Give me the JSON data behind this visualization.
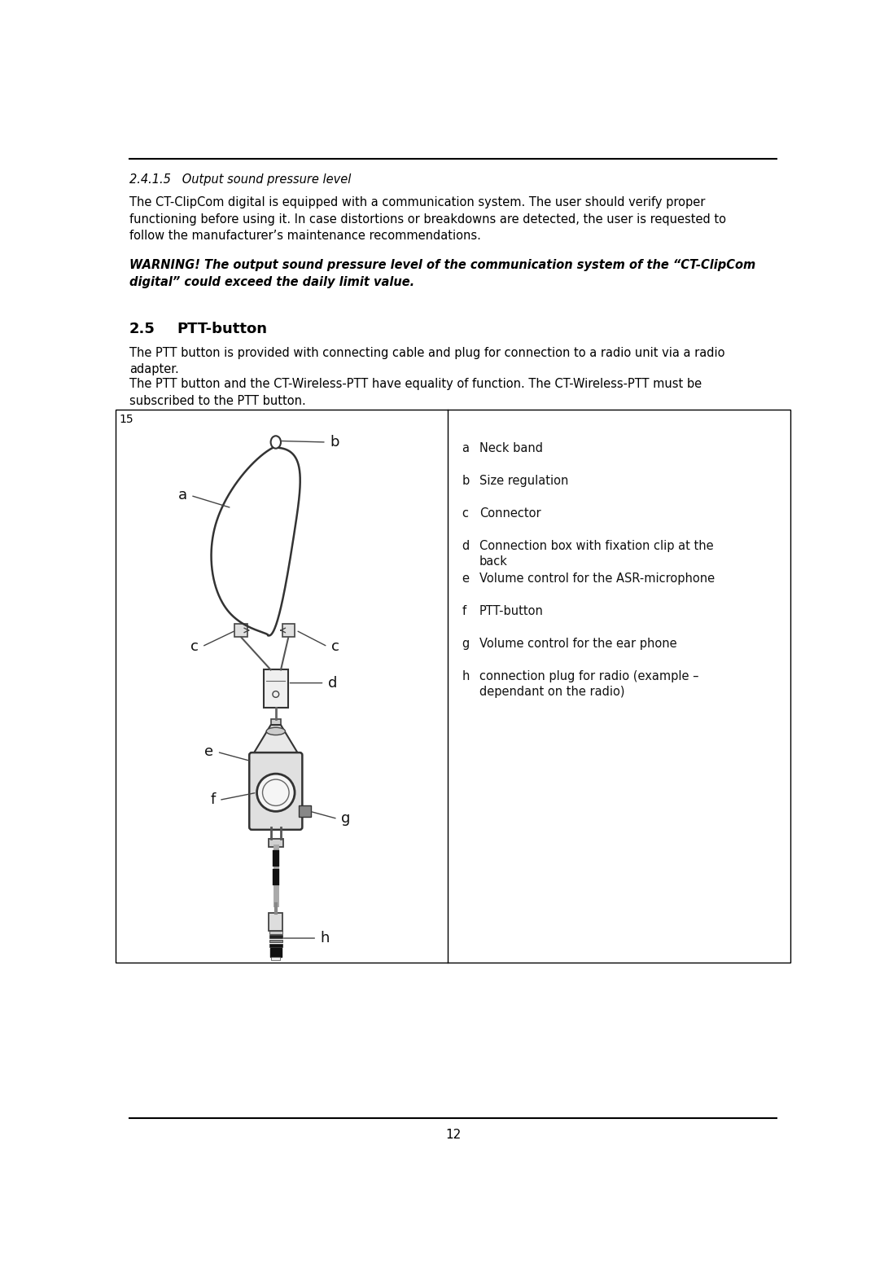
{
  "bg_color": "#ffffff",
  "section_title": "2.4.1.5   Output sound pressure level",
  "body_text1": "The CT-ClipCom digital is equipped with a communication system. The user should verify proper\nfunctioning before using it. In case distortions or breakdowns are detected, the user is requested to\nfollow the manufacturer’s maintenance recommendations.",
  "warning_text": "WARNING! The output sound pressure level of the communication system of the “CT-ClipCom\ndigital” could exceed the daily limit value.",
  "section2_num": "2.5",
  "section2_title": "PTT-button",
  "body_text2": "The PTT button is provided with connecting cable and plug for connection to a radio unit via a radio\nadapter.",
  "body_text3": "The PTT button and the CT-Wireless-PTT have equality of function. The CT-Wireless-PTT must be\nsubscribed to the PTT button.",
  "figure_num": "15",
  "legend_items": [
    [
      "a",
      "Neck band"
    ],
    [
      "b",
      "Size regulation"
    ],
    [
      "c",
      "Connector"
    ],
    [
      "d",
      "Connection box with fixation clip at the\nback"
    ],
    [
      "e",
      "Volume control for the ASR-microphone"
    ],
    [
      "f",
      "PTT-button"
    ],
    [
      "g",
      "Volume control for the ear phone"
    ],
    [
      "h",
      "connection plug for radio (example –\ndependant on the radio)"
    ]
  ],
  "page_number": "12"
}
